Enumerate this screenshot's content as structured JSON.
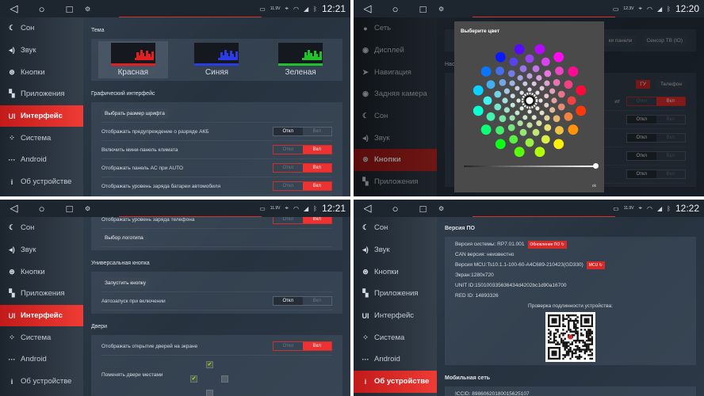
{
  "toggle_labels": {
    "off": "Откл",
    "on": "Вкл"
  },
  "accent_color": "#ee3131",
  "panels": [
    {
      "status": {
        "battery": "11.9V",
        "time": "12:21"
      },
      "sidebar": [
        {
          "label": "Сон",
          "icon": "moon-icon",
          "glyph": "☾"
        },
        {
          "label": "Звук",
          "icon": "speaker-icon",
          "glyph": "◂)"
        },
        {
          "label": "Кнопки",
          "icon": "steering-wheel-icon",
          "glyph": "⊛"
        },
        {
          "label": "Приложения",
          "icon": "apps-icon",
          "glyph": "▚"
        },
        {
          "label": "Интерфейс",
          "icon": "ui-icon",
          "glyph": "UI",
          "active": true
        },
        {
          "label": "Система",
          "icon": "system-icon",
          "glyph": "⁘"
        },
        {
          "label": "Android",
          "icon": "more-icon",
          "glyph": "···"
        },
        {
          "label": "Об устройстве",
          "icon": "info-icon",
          "glyph": "i"
        }
      ],
      "content": [
        {
          "kind": "label",
          "text": "Тема"
        },
        {
          "kind": "themes",
          "items": [
            {
              "name": "Красная",
              "color": "#e02020",
              "selected": true
            },
            {
              "name": "Синяя",
              "color": "#2a3ce8"
            },
            {
              "name": "Зеленая",
              "color": "#22c02a"
            }
          ]
        },
        {
          "kind": "label",
          "text": "Графический интерфейс"
        },
        {
          "kind": "box",
          "rows": [
            {
              "kind": "button",
              "text": "Выбрать размер шрифта"
            },
            {
              "kind": "toggle",
              "text": "Отображать предупреждение о разряде АКБ",
              "value": "off"
            },
            {
              "kind": "toggle",
              "text": "Включить мини-панель климата",
              "value": "on"
            },
            {
              "kind": "toggle",
              "text": "Отображать панель AC при AUTO",
              "value": "on"
            },
            {
              "kind": "toggle",
              "text": "Отображать уровень заряда батареи автомобиля",
              "value": "on"
            }
          ]
        }
      ]
    },
    {
      "status": {
        "battery": "12.3V",
        "time": "12:20"
      },
      "sidebar": [
        {
          "label": "Сеть",
          "icon": "network-icon",
          "glyph": "●"
        },
        {
          "label": "Дисплей",
          "icon": "display-icon",
          "glyph": "◉"
        },
        {
          "label": "Навигация",
          "icon": "navigation-icon",
          "glyph": "➤"
        },
        {
          "label": "Задняя камера",
          "icon": "camera-icon",
          "glyph": "◉"
        },
        {
          "label": "Сон",
          "icon": "moon-icon",
          "glyph": "☾"
        },
        {
          "label": "Звук",
          "icon": "speaker-icon",
          "glyph": "◂)"
        },
        {
          "label": "Кнопки",
          "icon": "steering-wheel-icon",
          "glyph": "⊛",
          "active": true
        },
        {
          "label": "Приложения",
          "icon": "apps-icon",
          "glyph": "▚"
        }
      ],
      "content": [
        {
          "kind": "tabs",
          "items": [
            "ки панели",
            "Сенсор ТВ (IO)"
          ]
        },
        {
          "kind": "label",
          "text": "Нас"
        },
        {
          "kind": "box",
          "rows": [
            {
              "kind": "choice",
              "items": [
                {
                  "text": "ГУ",
                  "selected": true
                },
                {
                  "text": "Телефон"
                }
              ]
            },
            {
              "kind": "toggle",
              "text": "ит",
              "value": "on"
            },
            {
              "kind": "toggle",
              "text": "",
              "value": "off"
            },
            {
              "kind": "toggle",
              "text": "",
              "value": "off"
            },
            {
              "kind": "toggle",
              "text": "",
              "value": "off"
            },
            {
              "kind": "toggle",
              "text": "",
              "value": "off"
            }
          ]
        }
      ],
      "dialog": {
        "title": "Выберите цвет",
        "selected_color": "#ffffff",
        "brightness_percent": 100,
        "ok_label": "ok"
      }
    },
    {
      "status": {
        "battery": "11.9V",
        "time": "12:21"
      },
      "sidebar": [
        {
          "label": "Сон",
          "icon": "moon-icon",
          "glyph": "☾"
        },
        {
          "label": "Звук",
          "icon": "speaker-icon",
          "glyph": "◂)"
        },
        {
          "label": "Кнопки",
          "icon": "steering-wheel-icon",
          "glyph": "⊛"
        },
        {
          "label": "Приложения",
          "icon": "apps-icon",
          "glyph": "▚"
        },
        {
          "label": "Интерфейс",
          "icon": "ui-icon",
          "glyph": "UI",
          "active": true
        },
        {
          "label": "Система",
          "icon": "system-icon",
          "glyph": "⁘"
        },
        {
          "label": "Android",
          "icon": "more-icon",
          "glyph": "···"
        },
        {
          "label": "Об устройстве",
          "icon": "info-icon",
          "glyph": "i"
        }
      ],
      "content": [
        {
          "kind": "box",
          "rows": [
            {
              "kind": "toggle",
              "text": "Отображать уровень заряда телефона",
              "value": "on"
            },
            {
              "kind": "button",
              "text": "Выбор логотипа"
            }
          ]
        },
        {
          "kind": "label",
          "text": "Универсальная кнопка"
        },
        {
          "kind": "box",
          "rows": [
            {
              "kind": "button",
              "text": "Запустить кнопку"
            },
            {
              "kind": "toggle",
              "text": "Автозапуск при включении",
              "value": "off"
            }
          ]
        },
        {
          "kind": "label",
          "text": "Двери"
        },
        {
          "kind": "box",
          "rows": [
            {
              "kind": "toggle",
              "text": "Отображать открытие дверей на экране",
              "value": "on"
            },
            {
              "kind": "doors",
              "text": "Поменять двери местами",
              "checks": {
                "top": true,
                "left": true,
                "right": false,
                "bottom": false
              }
            }
          ]
        }
      ]
    },
    {
      "status": {
        "battery": "11.9V",
        "time": "12:22"
      },
      "sidebar": [
        {
          "label": "Сон",
          "icon": "moon-icon",
          "glyph": "☾"
        },
        {
          "label": "Звук",
          "icon": "speaker-icon",
          "glyph": "◂)"
        },
        {
          "label": "Кнопки",
          "icon": "steering-wheel-icon",
          "glyph": "⊛"
        },
        {
          "label": "Приложения",
          "icon": "apps-icon",
          "glyph": "▚"
        },
        {
          "label": "Интерфейс",
          "icon": "ui-icon",
          "glyph": "UI"
        },
        {
          "label": "Система",
          "icon": "system-icon",
          "glyph": "⁘"
        },
        {
          "label": "Android",
          "icon": "more-icon",
          "glyph": "···"
        },
        {
          "label": "Об устройстве",
          "icon": "info-icon",
          "glyph": "i",
          "active": true
        }
      ],
      "content": [
        {
          "kind": "label",
          "text": "Версия ПО"
        },
        {
          "kind": "box",
          "rows": [
            {
              "kind": "text",
              "text": "Версия системы: RP7.01.001",
              "badge": "Обновление ПО"
            },
            {
              "kind": "text",
              "text": "CAN версия: неизвестно"
            },
            {
              "kind": "text",
              "text": "Версия MCU:Ts10.1.1-100-60-A4C689-210423(GD330)",
              "badge": "MCU"
            },
            {
              "kind": "text",
              "text": "Экран:1280x720"
            },
            {
              "kind": "text",
              "text": "UNIT ID:150100335636434d4202bc1d90a16700"
            },
            {
              "kind": "text",
              "text": "RED ID: 14893326"
            },
            {
              "kind": "center",
              "text": "Проверка подлинности устройства:"
            },
            {
              "kind": "qr"
            }
          ]
        },
        {
          "kind": "label",
          "text": "Мобильная сеть"
        },
        {
          "kind": "box",
          "rows": [
            {
              "kind": "text",
              "text": "ICCID:  89860620180015625107"
            }
          ]
        }
      ]
    }
  ]
}
